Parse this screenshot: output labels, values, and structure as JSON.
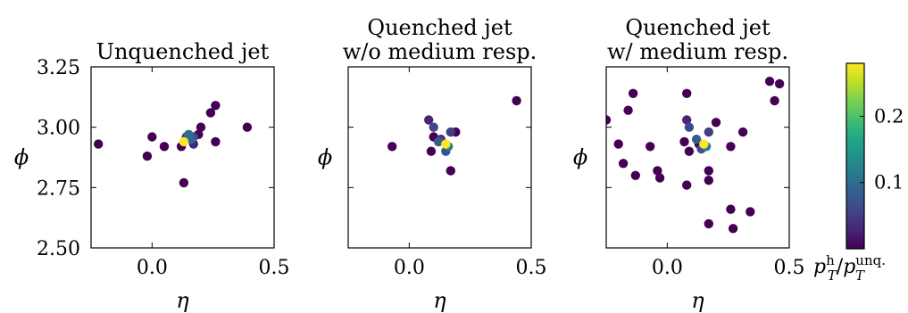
{
  "chart_data": [
    {
      "type": "scatter",
      "title": "Unquenched jet",
      "xlabel": "η",
      "ylabel": "ϕ",
      "xlim": [
        -0.25,
        0.5
      ],
      "ylim": [
        2.5,
        3.25
      ],
      "xticks": [
        "0.0",
        "0.5"
      ],
      "yticks": [
        "2.50",
        "2.75",
        "3.00",
        "3.25"
      ],
      "x_tick_values": [
        0.0,
        0.5
      ],
      "y_tick_values": [
        2.5,
        2.75,
        3.0,
        3.25
      ],
      "grid": false,
      "color_variable": "pT_h / pT_unq.",
      "points": [
        {
          "x": -0.22,
          "y": 2.93,
          "c": 0.0
        },
        {
          "x": -0.02,
          "y": 2.88,
          "c": 0.0
        },
        {
          "x": 0.0,
          "y": 2.96,
          "c": 0.0
        },
        {
          "x": 0.05,
          "y": 2.92,
          "c": 0.0
        },
        {
          "x": 0.12,
          "y": 2.92,
          "c": 0.0
        },
        {
          "x": 0.13,
          "y": 2.77,
          "c": 0.0
        },
        {
          "x": 0.19,
          "y": 2.97,
          "c": 0.0
        },
        {
          "x": 0.2,
          "y": 3.0,
          "c": 0.0
        },
        {
          "x": 0.24,
          "y": 3.06,
          "c": 0.0
        },
        {
          "x": 0.26,
          "y": 3.09,
          "c": 0.0
        },
        {
          "x": 0.26,
          "y": 2.94,
          "c": 0.0
        },
        {
          "x": 0.39,
          "y": 3.0,
          "c": 0.0
        },
        {
          "x": 0.17,
          "y": 2.93,
          "c": 0.03
        },
        {
          "x": 0.14,
          "y": 2.96,
          "c": 0.05
        },
        {
          "x": 0.17,
          "y": 2.96,
          "c": 0.06
        },
        {
          "x": 0.16,
          "y": 2.95,
          "c": 0.09
        },
        {
          "x": 0.15,
          "y": 2.97,
          "c": 0.1
        },
        {
          "x": 0.13,
          "y": 2.94,
          "c": 0.28
        }
      ]
    },
    {
      "type": "scatter",
      "title": "Quenched jet\nw/o medium resp.",
      "xlabel": "η",
      "ylabel": "ϕ",
      "xlim": [
        -0.25,
        0.5
      ],
      "ylim": [
        2.5,
        3.25
      ],
      "xticks": [
        "0.0",
        "0.5"
      ],
      "yticks": [],
      "x_tick_values": [
        0.0,
        0.5
      ],
      "y_tick_values": [
        2.5,
        2.75,
        3.0,
        3.25
      ],
      "grid": false,
      "color_variable": "pT_h / pT_unq.",
      "points": [
        {
          "x": -0.07,
          "y": 2.92,
          "c": 0.0
        },
        {
          "x": 0.09,
          "y": 2.9,
          "c": 0.0
        },
        {
          "x": 0.1,
          "y": 2.96,
          "c": 0.0
        },
        {
          "x": 0.17,
          "y": 2.82,
          "c": 0.0
        },
        {
          "x": 0.19,
          "y": 2.98,
          "c": 0.0
        },
        {
          "x": 0.44,
          "y": 3.11,
          "c": 0.0
        },
        {
          "x": 0.08,
          "y": 3.03,
          "c": 0.03
        },
        {
          "x": 0.13,
          "y": 2.95,
          "c": 0.04
        },
        {
          "x": 0.17,
          "y": 2.98,
          "c": 0.05
        },
        {
          "x": 0.1,
          "y": 3.0,
          "c": 0.06
        },
        {
          "x": 0.15,
          "y": 2.9,
          "c": 0.07
        },
        {
          "x": 0.12,
          "y": 2.94,
          "c": 0.08
        },
        {
          "x": 0.16,
          "y": 2.92,
          "c": 0.12
        },
        {
          "x": 0.15,
          "y": 2.93,
          "c": 0.28
        }
      ]
    },
    {
      "type": "scatter",
      "title": "Quenched jet\nw/ medium resp.",
      "xlabel": "η",
      "ylabel": "ϕ",
      "xlim": [
        -0.25,
        0.5
      ],
      "ylim": [
        2.5,
        3.25
      ],
      "xticks": [
        "0.0",
        "0.5"
      ],
      "yticks": [],
      "x_tick_values": [
        0.0,
        0.5
      ],
      "y_tick_values": [
        2.5,
        2.75,
        3.0,
        3.25
      ],
      "grid": false,
      "color_variable": "pT_h / pT_unq.",
      "points": [
        {
          "x": -0.25,
          "y": 3.03,
          "c": 0.0
        },
        {
          "x": -0.2,
          "y": 2.93,
          "c": 0.0
        },
        {
          "x": -0.18,
          "y": 2.85,
          "c": 0.0
        },
        {
          "x": -0.16,
          "y": 3.07,
          "c": 0.0
        },
        {
          "x": -0.14,
          "y": 3.14,
          "c": 0.0
        },
        {
          "x": -0.13,
          "y": 2.8,
          "c": 0.0
        },
        {
          "x": -0.07,
          "y": 2.92,
          "c": 0.0
        },
        {
          "x": -0.04,
          "y": 2.82,
          "c": 0.0
        },
        {
          "x": -0.03,
          "y": 2.79,
          "c": 0.0
        },
        {
          "x": 0.07,
          "y": 2.94,
          "c": 0.0
        },
        {
          "x": 0.08,
          "y": 3.14,
          "c": 0.0
        },
        {
          "x": 0.08,
          "y": 2.76,
          "c": 0.0
        },
        {
          "x": 0.09,
          "y": 2.9,
          "c": 0.0
        },
        {
          "x": 0.13,
          "y": 2.93,
          "c": 0.0
        },
        {
          "x": 0.17,
          "y": 2.82,
          "c": 0.0
        },
        {
          "x": 0.17,
          "y": 2.78,
          "c": 0.0
        },
        {
          "x": 0.17,
          "y": 2.6,
          "c": 0.0
        },
        {
          "x": 0.2,
          "y": 3.02,
          "c": 0.0
        },
        {
          "x": 0.26,
          "y": 2.92,
          "c": 0.0
        },
        {
          "x": 0.26,
          "y": 2.66,
          "c": 0.0
        },
        {
          "x": 0.27,
          "y": 2.58,
          "c": 0.0
        },
        {
          "x": 0.31,
          "y": 2.98,
          "c": 0.0
        },
        {
          "x": 0.34,
          "y": 2.65,
          "c": 0.0
        },
        {
          "x": 0.42,
          "y": 3.19,
          "c": 0.0
        },
        {
          "x": 0.44,
          "y": 3.11,
          "c": 0.0
        },
        {
          "x": 0.46,
          "y": 3.18,
          "c": 0.0
        },
        {
          "x": 0.08,
          "y": 3.03,
          "c": 0.03
        },
        {
          "x": 0.17,
          "y": 2.98,
          "c": 0.05
        },
        {
          "x": 0.09,
          "y": 3.0,
          "c": 0.06
        },
        {
          "x": 0.14,
          "y": 2.91,
          "c": 0.07
        },
        {
          "x": 0.12,
          "y": 2.95,
          "c": 0.08
        },
        {
          "x": 0.16,
          "y": 2.92,
          "c": 0.12
        },
        {
          "x": 0.15,
          "y": 2.93,
          "c": 0.28
        }
      ]
    }
  ],
  "colorbar": {
    "colormap": "viridis",
    "range": [
      0.0,
      0.28
    ],
    "ticks": [
      "0.1",
      "0.2"
    ],
    "tick_values": [
      0.1,
      0.2
    ],
    "label": "pT^h / pT^unq."
  }
}
